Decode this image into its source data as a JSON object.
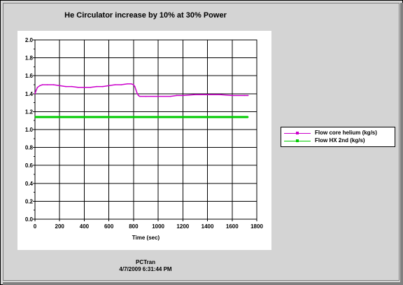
{
  "title": "He Circulator increase by 10% at 30% Power",
  "footer": {
    "line1": "PCTran",
    "line2": "4/7/2009 6:31:44 PM"
  },
  "colors": {
    "frame_bg": "#d4d4d4",
    "plot_bg": "#ffffff",
    "grid": "#000000"
  },
  "chart_data": {
    "type": "line",
    "title": "He Circulator increase by 10% at 30% Power",
    "xlabel": "Time (sec)",
    "ylabel": "",
    "xlim": [
      0,
      1800
    ],
    "ylim": [
      0,
      2.0
    ],
    "xticks": [
      0,
      200,
      400,
      600,
      800,
      1000,
      1200,
      1400,
      1600,
      1800
    ],
    "yticks": [
      0.0,
      0.2,
      0.4,
      0.6,
      0.8,
      1.0,
      1.2,
      1.4,
      1.6,
      1.8,
      2.0
    ],
    "xtick_labels": [
      "0",
      "200",
      "400",
      "600",
      "800",
      "1000",
      "1200",
      "1400",
      "1600",
      "1800"
    ],
    "ytick_labels": [
      "0.0",
      "0.2",
      "0.4",
      "0.6",
      "0.8",
      "1.0",
      "1.2",
      "1.4",
      "1.6",
      "1.8",
      "2.0"
    ],
    "grid": true,
    "legend_position": "right",
    "series": [
      {
        "name": "Flow core helium (kg/s)",
        "color": "#cc00cc",
        "x": [
          0,
          10,
          20,
          40,
          60,
          100,
          150,
          200,
          250,
          300,
          350,
          400,
          450,
          500,
          550,
          600,
          650,
          700,
          750,
          780,
          800,
          810,
          820,
          830,
          840,
          850,
          900,
          1000,
          1100,
          1150,
          1200,
          1300,
          1400,
          1500,
          1600,
          1700,
          1730
        ],
        "y": [
          1.4,
          1.44,
          1.47,
          1.49,
          1.5,
          1.5,
          1.5,
          1.49,
          1.48,
          1.48,
          1.47,
          1.47,
          1.47,
          1.48,
          1.48,
          1.49,
          1.5,
          1.5,
          1.51,
          1.51,
          1.5,
          1.48,
          1.44,
          1.4,
          1.38,
          1.37,
          1.37,
          1.37,
          1.37,
          1.38,
          1.38,
          1.39,
          1.39,
          1.39,
          1.38,
          1.38,
          1.38
        ]
      },
      {
        "name": "Flow HX 2nd (kg/s)",
        "color": "#00cc00",
        "x": [
          0,
          200,
          400,
          600,
          800,
          1000,
          1200,
          1400,
          1600,
          1730
        ],
        "y": [
          1.14,
          1.14,
          1.14,
          1.14,
          1.14,
          1.14,
          1.14,
          1.14,
          1.14,
          1.14
        ]
      }
    ]
  }
}
